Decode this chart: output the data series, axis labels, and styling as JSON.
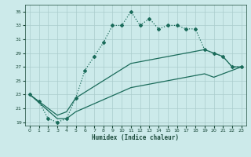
{
  "xlabel": "Humidex (Indice chaleur)",
  "xlim": [
    -0.5,
    23.5
  ],
  "ylim": [
    18.5,
    36
  ],
  "yticks": [
    19,
    21,
    23,
    25,
    27,
    29,
    31,
    33,
    35
  ],
  "xticks": [
    0,
    1,
    2,
    3,
    4,
    5,
    6,
    7,
    8,
    9,
    10,
    11,
    12,
    13,
    14,
    15,
    16,
    17,
    18,
    19,
    20,
    21,
    22,
    23
  ],
  "background_color": "#cceaea",
  "grid_color": "#aacccc",
  "line_color": "#1a6b5a",
  "line1_x": [
    0,
    1,
    2,
    3,
    4,
    5,
    6,
    7,
    8,
    9,
    10,
    11,
    12,
    13,
    14,
    15,
    16,
    17,
    18,
    19,
    20,
    21,
    22,
    23
  ],
  "line1_y": [
    23,
    22,
    19.5,
    19,
    19.5,
    22.5,
    26.5,
    28.5,
    30.5,
    33,
    33,
    35,
    33,
    34,
    32.5,
    33,
    33,
    32.5,
    32.5,
    29.5,
    29,
    28.5,
    27,
    27
  ],
  "line2_x": [
    0,
    3,
    4,
    5,
    11,
    19,
    20,
    21,
    22,
    23
  ],
  "line2_y": [
    23,
    20,
    20.5,
    22.5,
    27.5,
    29.5,
    29,
    28.5,
    27,
    27
  ],
  "line3_x": [
    0,
    3,
    4,
    5,
    11,
    19,
    20,
    21,
    22,
    23
  ],
  "line3_y": [
    23,
    19.5,
    19.5,
    20.5,
    24,
    26,
    25.5,
    26,
    26.5,
    27
  ]
}
